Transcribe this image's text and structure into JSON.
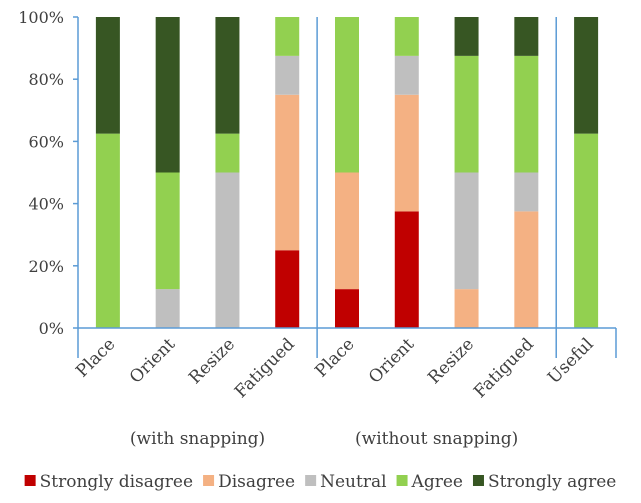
{
  "chart_data": {
    "type": "bar",
    "stacked": true,
    "normalized": true,
    "categories": [
      "Place",
      "Orient",
      "Resize",
      "Fatigued",
      "Place",
      "Orient",
      "Resize",
      "Fatigued",
      "Useful"
    ],
    "groups": [
      {
        "label": "(with snapping)",
        "categories": [
          0,
          1,
          2,
          3
        ]
      },
      {
        "label": "(without snapping)",
        "categories": [
          4,
          5,
          6,
          7
        ]
      },
      {
        "label": "",
        "categories": [
          8
        ]
      }
    ],
    "series": [
      {
        "name": "Strongly disagree",
        "color": "#c00000",
        "values": [
          0,
          0,
          0,
          25,
          12.5,
          37.5,
          0,
          0,
          0
        ]
      },
      {
        "name": "Disagree",
        "color": "#f4b183",
        "values": [
          0,
          0,
          0,
          50,
          37.5,
          37.5,
          12.5,
          37.5,
          0
        ]
      },
      {
        "name": "Neutral",
        "color": "#bfbfbf",
        "values": [
          0,
          12.5,
          50,
          12.5,
          0,
          12.5,
          37.5,
          12.5,
          0
        ]
      },
      {
        "name": "Agree",
        "color": "#92d050",
        "values": [
          62.5,
          37.5,
          12.5,
          12.5,
          50,
          12.5,
          37.5,
          37.5,
          62.5
        ]
      },
      {
        "name": "Strongly agree",
        "color": "#375623",
        "values": [
          37.5,
          50,
          37.5,
          0,
          0,
          0,
          12.5,
          12.5,
          37.5
        ]
      }
    ],
    "yticks": [
      "0%",
      "20%",
      "40%",
      "60%",
      "80%",
      "100%"
    ],
    "ylim": [
      0,
      100
    ],
    "grid": false,
    "legend_position": "bottom",
    "xlabel": "",
    "ylabel": "",
    "title": ""
  }
}
